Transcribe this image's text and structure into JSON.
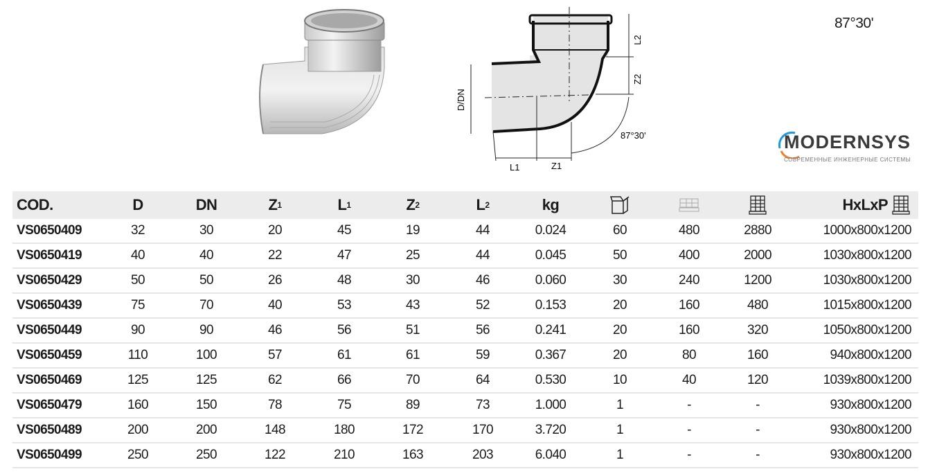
{
  "angle_label": "87°30'",
  "drawing": {
    "labels": {
      "l2": "L2",
      "z2": "Z2",
      "d_dn": "D/DN",
      "l1": "L1",
      "z1": "Z1",
      "angle": "87°30'"
    }
  },
  "table": {
    "headers": {
      "code": "COD.",
      "d": "D",
      "dn": "DN",
      "z1": "Z",
      "z1_sub": "1",
      "l1": "L",
      "l1_sub": "1",
      "z2": "Z",
      "z2_sub": "2",
      "l2": "L",
      "l2_sub": "2",
      "kg": "kg",
      "hlp": "HxLxP",
      "icons": [
        "box-icon",
        "pallet-layer-icon",
        "pallet-icon",
        "pallet-dimensions-icon"
      ]
    },
    "rows": [
      [
        "VS0650409",
        "32",
        "30",
        "20",
        "45",
        "19",
        "44",
        "0.024",
        "60",
        "480",
        "2880",
        "1000x800x1200"
      ],
      [
        "VS0650419",
        "40",
        "40",
        "22",
        "47",
        "25",
        "44",
        "0.045",
        "50",
        "400",
        "2000",
        "1030x800x1200"
      ],
      [
        "VS0650429",
        "50",
        "50",
        "26",
        "48",
        "30",
        "46",
        "0.060",
        "30",
        "240",
        "1200",
        "1030x800x1200"
      ],
      [
        "VS0650439",
        "75",
        "70",
        "40",
        "53",
        "43",
        "52",
        "0.153",
        "20",
        "160",
        "480",
        "1015x800x1200"
      ],
      [
        "VS0650449",
        "90",
        "90",
        "46",
        "56",
        "51",
        "56",
        "0.241",
        "20",
        "160",
        "320",
        "1050x800x1200"
      ],
      [
        "VS0650459",
        "110",
        "100",
        "57",
        "61",
        "61",
        "59",
        "0.367",
        "20",
        "80",
        "160",
        "940x800x1200"
      ],
      [
        "VS0650469",
        "125",
        "125",
        "62",
        "66",
        "70",
        "64",
        "0.530",
        "10",
        "40",
        "120",
        "1039x800x1200"
      ],
      [
        "VS0650479",
        "160",
        "150",
        "78",
        "75",
        "89",
        "73",
        "1.000",
        "1",
        "-",
        "-",
        "930x800x1200"
      ],
      [
        "VS0650489",
        "200",
        "200",
        "148",
        "180",
        "172",
        "170",
        "3.720",
        "1",
        "-",
        "-",
        "930x800x1200"
      ],
      [
        "VS0650499",
        "250",
        "250",
        "122",
        "210",
        "163",
        "203",
        "6.040",
        "1",
        "-",
        "-",
        "930x800x1200"
      ]
    ]
  },
  "watermark": {
    "brand": "MODERNSYS",
    "tagline": "СОВРЕМЕННЫЕ ИНЖЕНЕРНЫЕ СИСТЕМЫ"
  }
}
